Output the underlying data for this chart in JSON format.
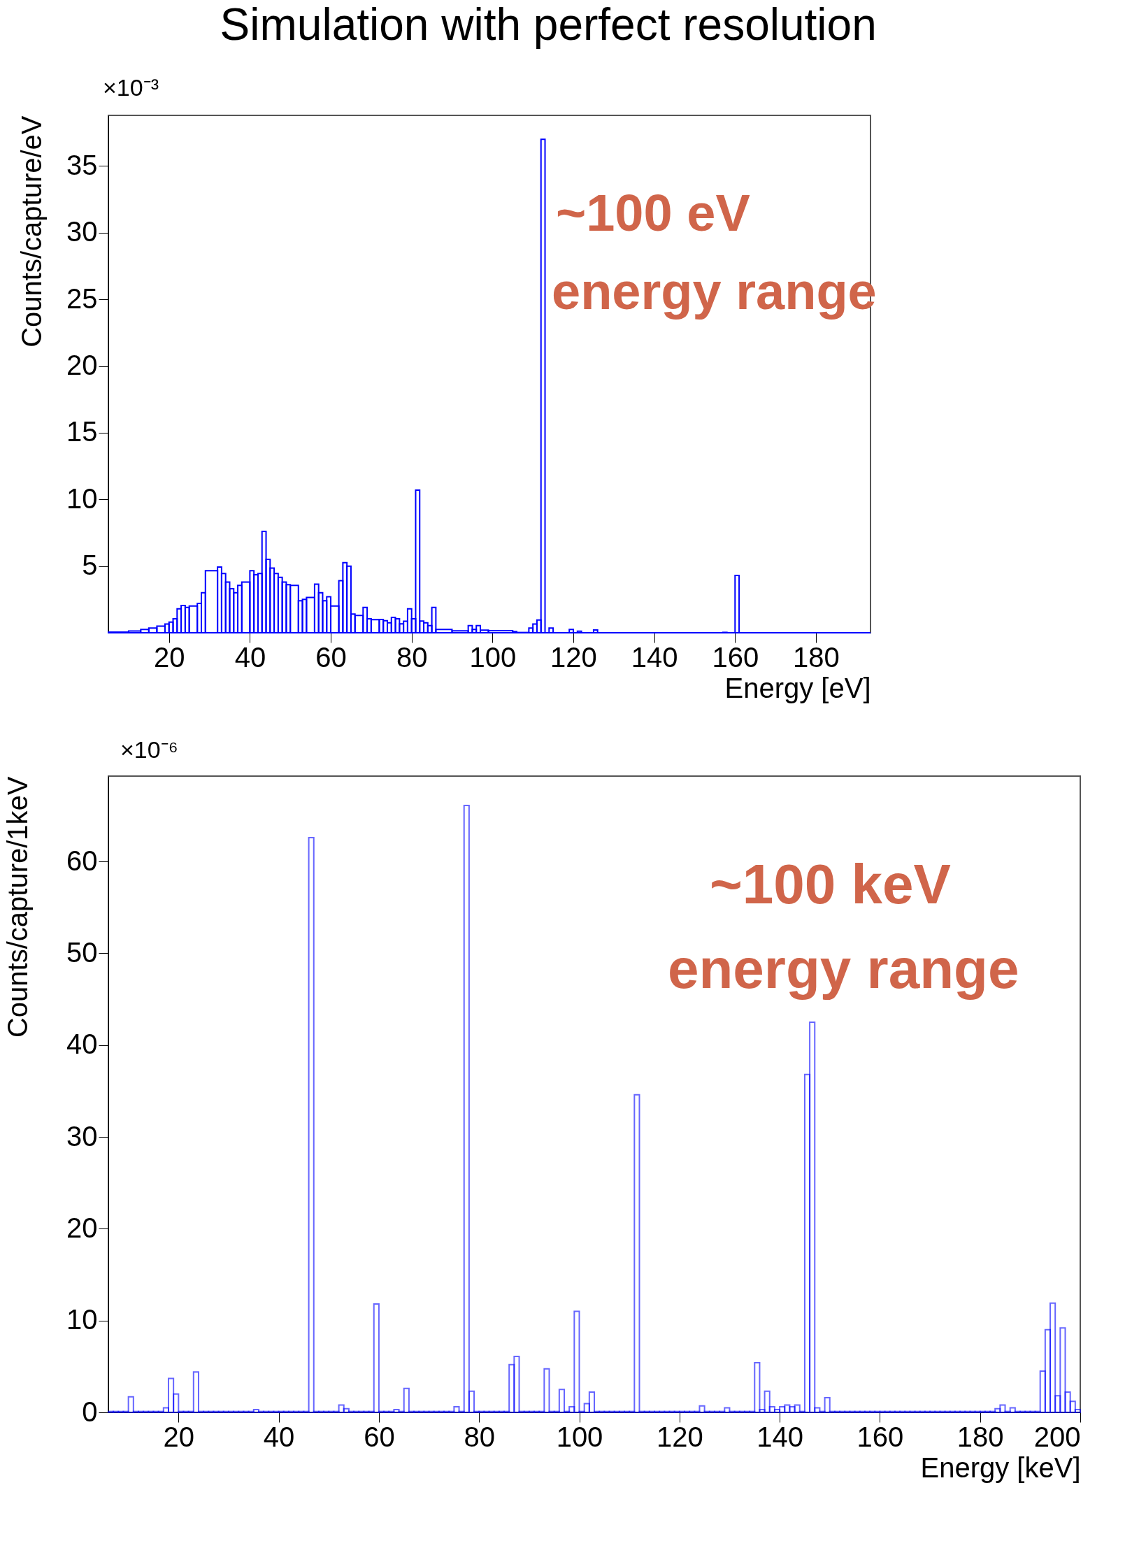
{
  "chart_data": [
    {
      "type": "histogram",
      "title": "Simulation with perfect resolution",
      "xlabel": "Energy [eV]",
      "ylabel": "Counts/capture/eV",
      "annotations": [
        "×10⁻³",
        "~100 eV",
        "energy range"
      ],
      "bins": [
        5,
        10,
        13,
        15,
        17,
        19,
        20,
        21,
        22,
        23,
        24,
        25,
        27,
        28,
        29,
        32,
        33,
        34,
        35,
        36,
        37,
        38,
        40,
        41,
        42,
        43,
        44,
        45,
        46,
        47,
        48,
        49,
        50,
        52,
        53,
        54,
        56,
        57,
        58,
        59,
        60,
        62,
        63,
        64,
        65,
        66,
        68,
        69,
        70,
        72,
        73,
        74,
        75,
        76,
        77,
        78,
        79,
        80,
        81,
        82,
        83,
        84,
        85,
        86,
        90,
        94,
        95,
        96,
        97,
        99,
        105,
        106,
        109,
        110,
        111,
        112,
        113,
        114,
        115,
        119,
        120,
        121,
        122,
        125,
        126,
        157,
        158,
        160,
        161,
        193.5
      ],
      "series": [
        {
          "color": "#0000ff",
          "values": [
            0.05,
            0.13,
            0.25,
            0.35,
            0.5,
            0.65,
            0.8,
            1.05,
            1.8,
            2.05,
            1.9,
            2.0,
            2.2,
            3.0,
            4.65,
            4.93,
            4.45,
            3.8,
            3.3,
            3.0,
            3.55,
            3.8,
            4.65,
            4.35,
            4.45,
            7.6,
            5.5,
            4.85,
            4.45,
            4.15,
            3.8,
            3.6,
            3.55,
            2.4,
            2.5,
            2.65,
            3.65,
            3.0,
            2.4,
            2.7,
            2.0,
            3.9,
            5.25,
            5.0,
            1.4,
            1.3,
            1.9,
            1.05,
            0.98,
            1.0,
            0.9,
            0.75,
            1.15,
            1.05,
            0.67,
            0.86,
            1.8,
            1.05,
            10.7,
            0.88,
            0.75,
            0.54,
            1.9,
            0.25,
            0.15,
            0.54,
            0.25,
            0.54,
            0.2,
            0.16,
            0.09,
            0.02,
            0.36,
            0.66,
            0.96,
            37.0,
            0,
            0.36,
            0,
            0.25,
            0,
            0.12,
            0,
            0.21,
            0,
            0.03,
            0,
            4.3,
            0
          ]
        }
      ],
      "xlim": [
        5,
        193.5
      ],
      "ylim": [
        0,
        38.8
      ],
      "xticks": [
        20,
        40,
        60,
        80,
        100,
        120,
        140,
        160,
        180
      ],
      "yticks": [
        5,
        10,
        15,
        20,
        25,
        30,
        35
      ],
      "grid": false
    },
    {
      "type": "histogram",
      "xlabel": "Energy [keV]",
      "ylabel": "Counts/capture/1keV",
      "annotations": [
        "×10⁻⁶",
        "~100 keV",
        "energy range"
      ],
      "bins": [
        6,
        7,
        8,
        9,
        10,
        11,
        12,
        13,
        14,
        15,
        16,
        17,
        18,
        19,
        20,
        21,
        22,
        23,
        24,
        25,
        26,
        27,
        28,
        29,
        30,
        31,
        32,
        33,
        34,
        35,
        36,
        37,
        38,
        39,
        40,
        41,
        42,
        43,
        44,
        45,
        46,
        47,
        48,
        49,
        50,
        51,
        52,
        53,
        54,
        55,
        56,
        57,
        58,
        59,
        60,
        61,
        62,
        63,
        64,
        65,
        66,
        67,
        68,
        69,
        70,
        71,
        72,
        73,
        74,
        75,
        76,
        77,
        78,
        79,
        80,
        81,
        82,
        83,
        84,
        85,
        86,
        87,
        88,
        89,
        90,
        91,
        92,
        93,
        94,
        95,
        96,
        97,
        98,
        99,
        100,
        101,
        102,
        103,
        104,
        105,
        106,
        107,
        108,
        109,
        110,
        111,
        112,
        113,
        114,
        115,
        116,
        117,
        118,
        119,
        120,
        121,
        122,
        123,
        124,
        125,
        126,
        127,
        128,
        129,
        130,
        131,
        132,
        133,
        134,
        135,
        136,
        137,
        138,
        139,
        140,
        141,
        142,
        143,
        144,
        145,
        146,
        147,
        148,
        149,
        150,
        151,
        152,
        153,
        154,
        155,
        156,
        157,
        158,
        159,
        160,
        161,
        162,
        163,
        164,
        165,
        166,
        167,
        168,
        169,
        170,
        171,
        172,
        173,
        174,
        175,
        176,
        177,
        178,
        179,
        180,
        181,
        182,
        183,
        184,
        185,
        186,
        187,
        188,
        189,
        190,
        191,
        192,
        193,
        194,
        195,
        196,
        197,
        198,
        199,
        200
      ],
      "series": [
        {
          "color": "#0000ff",
          "values": [
            0.1,
            0.1,
            0.1,
            0.1,
            1.7,
            0.1,
            0.1,
            0.1,
            0.1,
            0.1,
            0.1,
            0.5,
            3.7,
            2.0,
            0.1,
            0.1,
            0.1,
            4.4,
            0.1,
            0.1,
            0.1,
            0.1,
            0.1,
            0.1,
            0.1,
            0.1,
            0.1,
            0.1,
            0.1,
            0.3,
            0.1,
            0.1,
            0.1,
            0.1,
            0.1,
            0.1,
            0.1,
            0.1,
            0.1,
            0.1,
            62.6,
            0.1,
            0.1,
            0.1,
            0.1,
            0.1,
            0.8,
            0.4,
            0.1,
            0.1,
            0.1,
            0.1,
            0.1,
            11.8,
            0.1,
            0.1,
            0.1,
            0.3,
            0.1,
            2.6,
            0.1,
            0.1,
            0.1,
            0.1,
            0.1,
            0.1,
            0.1,
            0.1,
            0.1,
            0.6,
            0.1,
            66.1,
            2.3,
            0.1,
            0.1,
            0.1,
            0.1,
            0.1,
            0.1,
            0.1,
            5.2,
            6.1,
            0.1,
            0.1,
            0.1,
            0.1,
            0.1,
            4.75,
            0.1,
            0.1,
            2.5,
            0.1,
            0.6,
            11.0,
            0.1,
            0.95,
            2.2,
            0.1,
            0.1,
            0.1,
            0.1,
            0.1,
            0.1,
            0.1,
            0.1,
            34.6,
            0.1,
            0.1,
            0.1,
            0.1,
            0.1,
            0.1,
            0.1,
            0.1,
            0.1,
            0.1,
            0.1,
            0.1,
            0.7,
            0.1,
            0.1,
            0.1,
            0.1,
            0.5,
            0.1,
            0.1,
            0.1,
            0.1,
            0.1,
            5.4,
            0.3,
            2.3,
            0.6,
            0.3,
            0.6,
            0.8,
            0.6,
            0.8,
            0.1,
            36.8,
            42.5,
            0.5,
            0.1,
            1.6,
            0.1,
            0.1,
            0.1,
            0.1,
            0.1,
            0.1,
            0.1,
            0.1,
            0.1,
            0.1,
            0.1,
            0.1,
            0.1,
            0.1,
            0.1,
            0.1,
            0.1,
            0.1,
            0.1,
            0.1,
            0.1,
            0.1,
            0.1,
            0.1,
            0.1,
            0.1,
            0.1,
            0.1,
            0.1,
            0.1,
            0.1,
            0.1,
            0.1,
            0.4,
            0.8,
            0.1,
            0.5,
            0.1,
            0.1,
            0.1,
            0.1,
            0.1,
            4.5,
            9.0,
            11.9,
            1.8,
            9.2,
            2.2,
            1.2,
            0.3
          ]
        }
      ],
      "xlim": [
        6,
        200
      ],
      "ylim": [
        0,
        69.3
      ],
      "xticks": [
        20,
        40,
        60,
        80,
        100,
        120,
        140,
        160,
        180,
        200
      ],
      "yticks": [
        0,
        10,
        20,
        30,
        40,
        50,
        60
      ],
      "grid": false
    }
  ]
}
